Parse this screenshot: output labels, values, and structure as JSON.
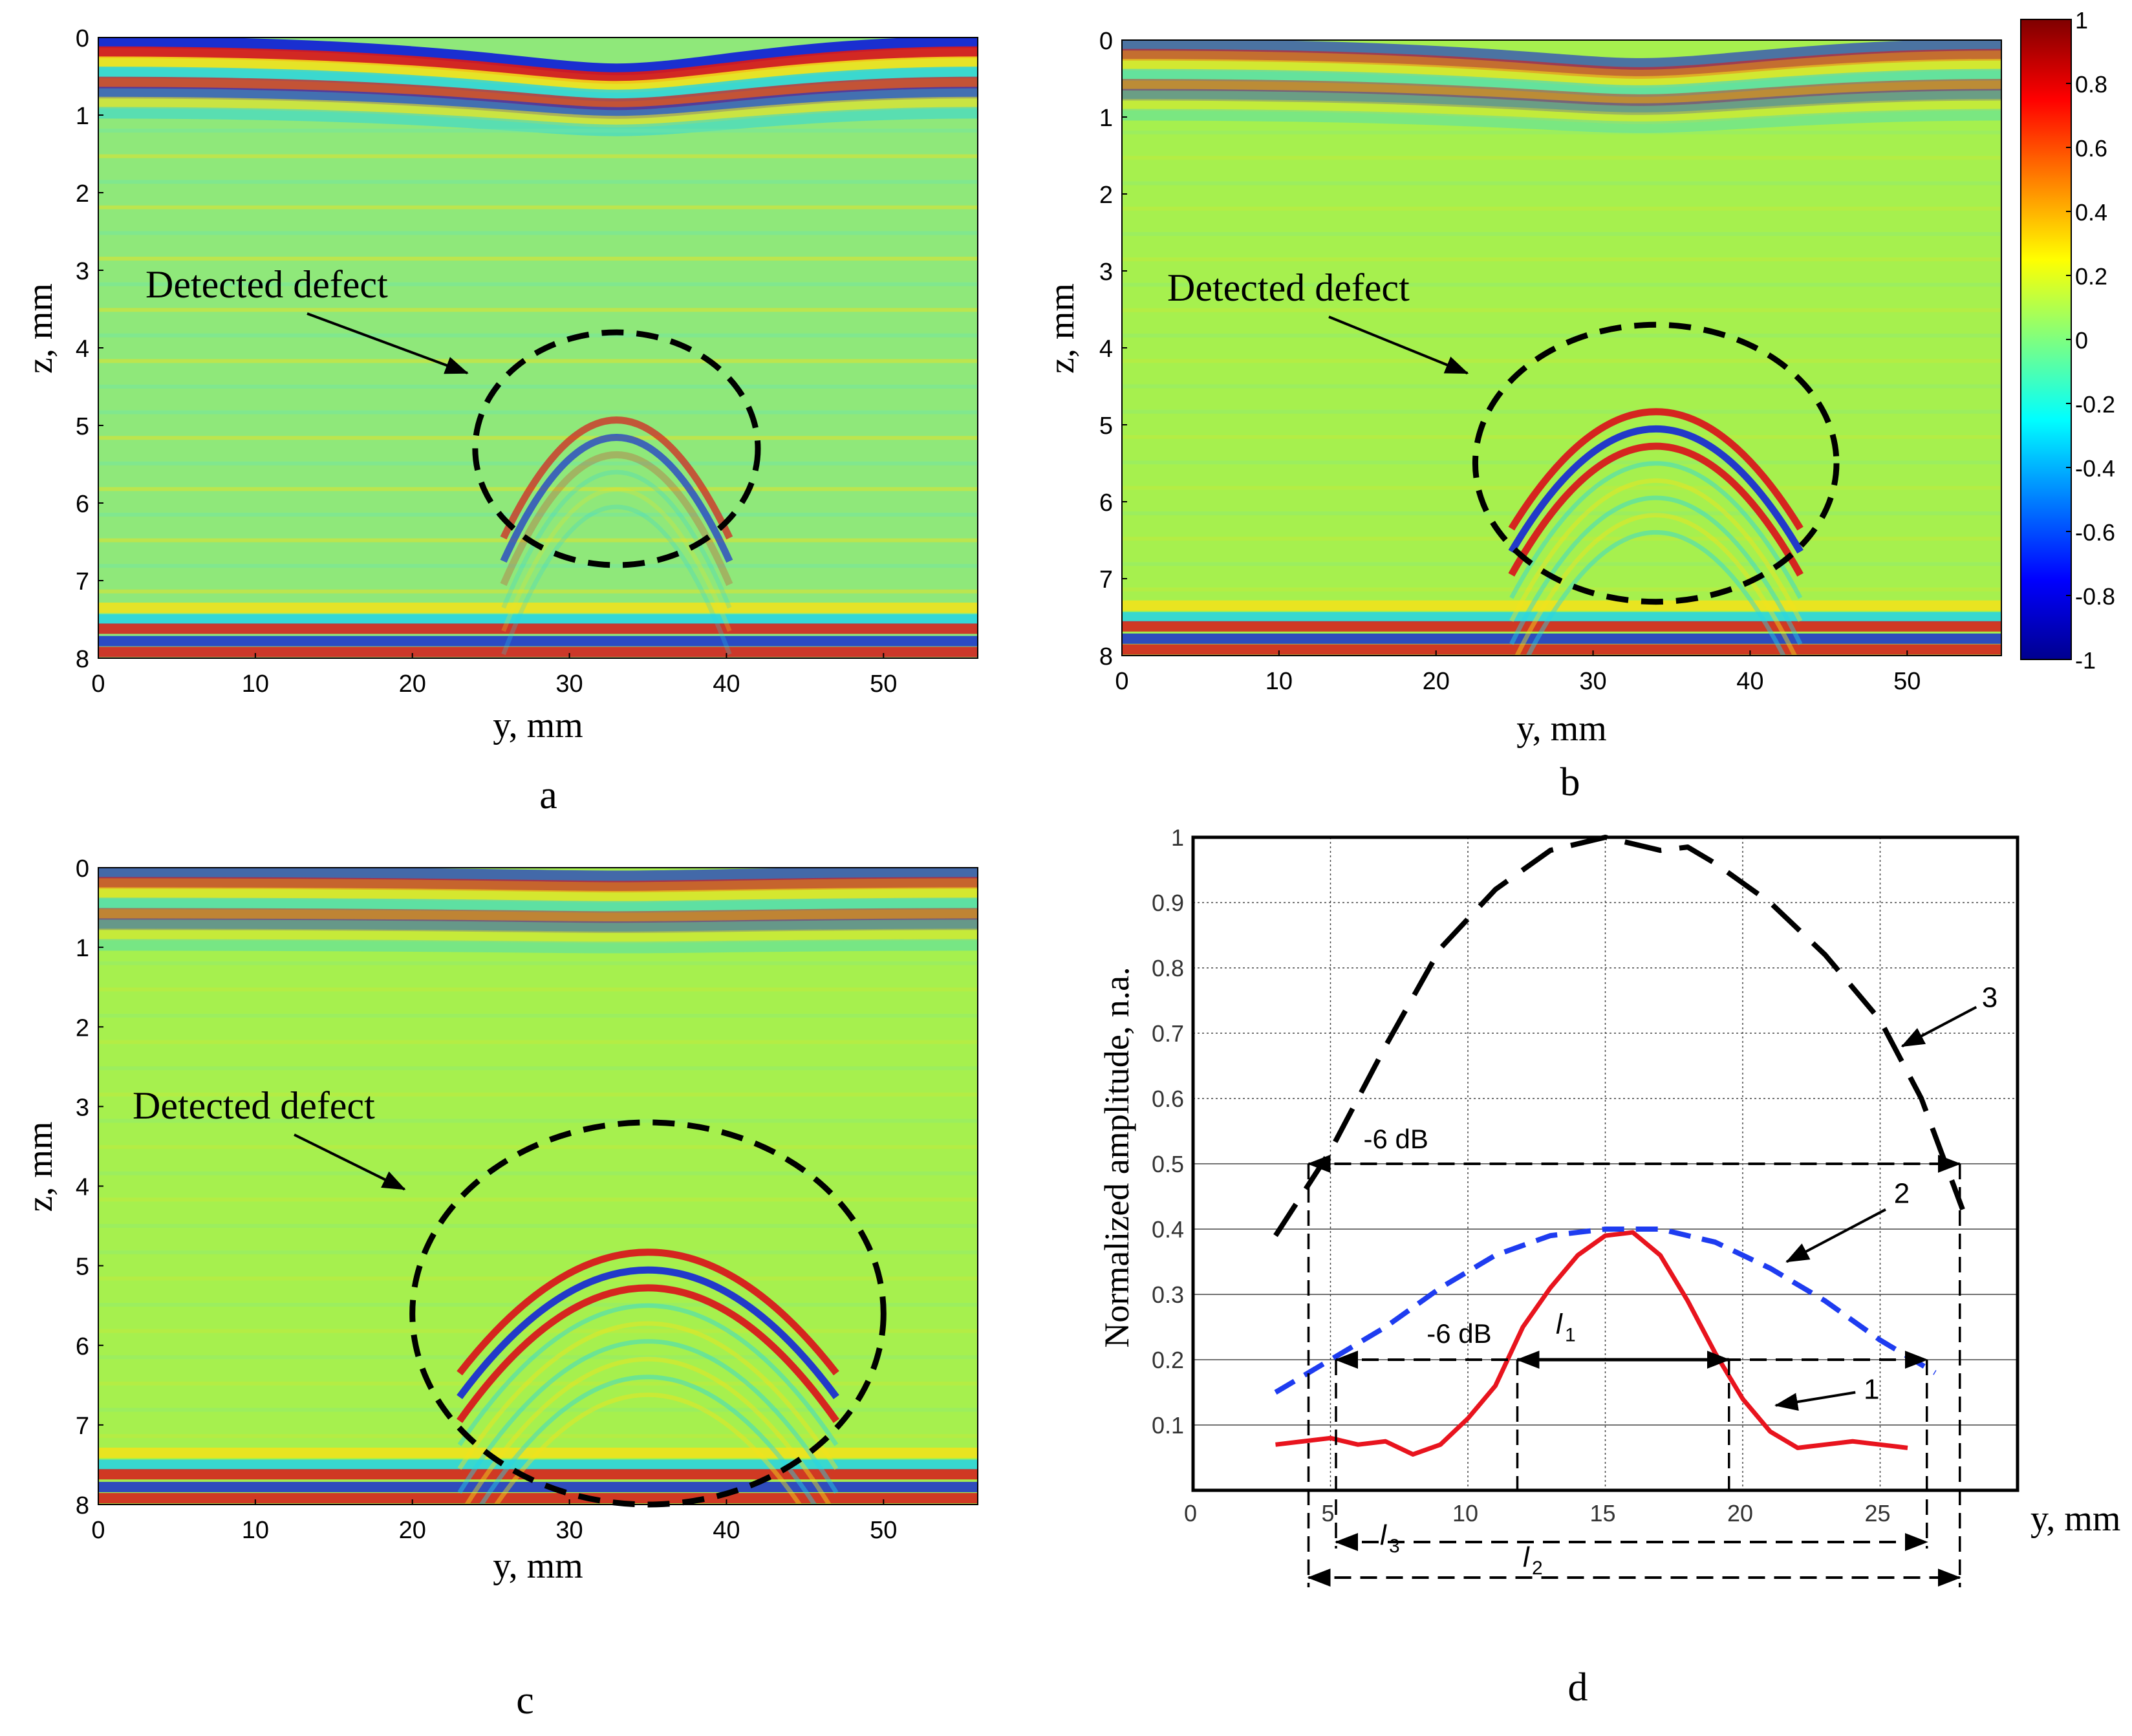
{
  "figure": {
    "panel_letters": [
      "a",
      "b",
      "c",
      "d"
    ]
  },
  "colors": {
    "panel_bg": "#a6f04e",
    "panel_bg_a": "#8fe87a",
    "red": "#d7191c",
    "blue": "#1a2fd0",
    "cyan": "#25d4e6",
    "yellow": "#f4e21a",
    "curve1": "#e8141e",
    "curve2": "#1e3cf0",
    "curve3": "#000000"
  },
  "chart_data": [
    {
      "id": "a",
      "type": "heatmap",
      "title": "",
      "xlabel": "y, mm",
      "ylabel": "z, mm",
      "xlim": [
        0,
        56
      ],
      "ylim": [
        0,
        8
      ],
      "x_ticks": [
        "0",
        "10",
        "20",
        "30",
        "40",
        "50"
      ],
      "y_ticks": [
        "0",
        "1",
        "2",
        "3",
        "4",
        "5",
        "6",
        "7",
        "8"
      ],
      "annotation": "Detected defect",
      "defect_ellipse": {
        "center_y": 33,
        "center_z": 5.3,
        "radius_y": 9,
        "radius_z": 1.5
      },
      "arc_apex_z": 4.85,
      "arc_strength": "weak"
    },
    {
      "id": "b",
      "type": "heatmap",
      "title": "",
      "xlabel": "y, mm",
      "ylabel": "z, mm",
      "xlim": [
        0,
        56
      ],
      "ylim": [
        0,
        8
      ],
      "x_ticks": [
        "0",
        "10",
        "20",
        "30",
        "40",
        "50"
      ],
      "y_ticks": [
        "0",
        "1",
        "2",
        "3",
        "4",
        "5",
        "6",
        "7",
        "8"
      ],
      "annotation": "Detected defect",
      "defect_ellipse": {
        "center_y": 34,
        "center_z": 5.5,
        "radius_y": 11.5,
        "radius_z": 1.8
      },
      "arc_apex_z": 4.75,
      "arc_strength": "medium",
      "colorbar": {
        "min": -1,
        "max": 1,
        "ticks": [
          "1",
          "0.8",
          "0.6",
          "0.4",
          "0.2",
          "0",
          "-0.2",
          "-0.4",
          "-0.6",
          "-0.8",
          "-1"
        ]
      }
    },
    {
      "id": "c",
      "type": "heatmap",
      "title": "",
      "xlabel": "y, mm",
      "ylabel": "z, mm",
      "xlim": [
        0,
        56
      ],
      "ylim": [
        0,
        8
      ],
      "x_ticks": [
        "0",
        "10",
        "20",
        "30",
        "40",
        "50"
      ],
      "y_ticks": [
        "0",
        "1",
        "2",
        "3",
        "4",
        "5",
        "6",
        "7",
        "8"
      ],
      "annotation": "Detected defect",
      "defect_ellipse": {
        "center_y": 35,
        "center_z": 5.6,
        "radius_y": 15,
        "radius_z": 2.4
      },
      "arc_apex_z": 4.75,
      "arc_strength": "strong"
    },
    {
      "id": "d",
      "type": "line",
      "title": "",
      "xlabel": "y, mm",
      "ylabel": "Normalized amplitude, n.a.",
      "xlim": [
        0,
        30
      ],
      "ylim": [
        0,
        1
      ],
      "x_ticks": [
        "0",
        "5",
        "10",
        "15",
        "20",
        "25"
      ],
      "y_ticks": [
        "0.1",
        "0.2",
        "0.3",
        "0.4",
        "0.5",
        "0.6",
        "0.7",
        "0.8",
        "0.9",
        "1"
      ],
      "series": [
        {
          "name": "1",
          "style": "solid",
          "x": [
            3,
            4,
            5,
            6,
            7,
            8,
            9,
            10,
            11,
            12,
            13,
            14,
            15,
            16,
            17,
            18,
            19,
            20,
            21,
            22,
            23,
            24,
            25,
            26
          ],
          "y": [
            0.07,
            0.075,
            0.08,
            0.07,
            0.075,
            0.055,
            0.07,
            0.11,
            0.16,
            0.25,
            0.31,
            0.36,
            0.39,
            0.395,
            0.36,
            0.29,
            0.21,
            0.14,
            0.09,
            0.065,
            0.07,
            0.075,
            0.07,
            0.065
          ]
        },
        {
          "name": "2",
          "style": "dashed",
          "x": [
            3,
            5,
            7,
            9,
            11,
            13,
            15,
            17,
            19,
            21,
            23,
            25,
            27
          ],
          "y": [
            0.15,
            0.2,
            0.25,
            0.31,
            0.36,
            0.39,
            0.4,
            0.4,
            0.38,
            0.34,
            0.29,
            0.23,
            0.18
          ]
        },
        {
          "name": "3",
          "style": "long-dashed",
          "x": [
            3,
            5,
            7,
            9,
            11,
            13,
            15,
            17,
            18,
            19,
            21,
            23,
            25,
            26.5,
            28
          ],
          "y": [
            0.39,
            0.52,
            0.68,
            0.83,
            0.92,
            0.98,
            1.0,
            0.98,
            0.985,
            0.96,
            0.9,
            0.82,
            0.72,
            0.6,
            0.43
          ]
        }
      ],
      "annotations": {
        "minus6db_upper": "-6 dB",
        "minus6db_lower": "-6 dB",
        "l1_base": "l",
        "l1_sub": "1",
        "l2_base": "l",
        "l2_sub": "2",
        "l3_base": "l",
        "l3_sub": "3",
        "label_1": "1",
        "label_2": "2",
        "label_3": "3"
      }
    }
  ]
}
